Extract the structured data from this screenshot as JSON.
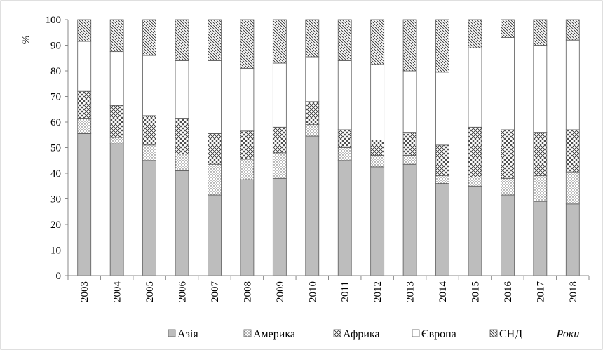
{
  "chart_data": {
    "type": "bar",
    "stacked": true,
    "ylabel": "%",
    "xlabel": "Роки",
    "ylim": [
      0,
      100
    ],
    "yticks": [
      0,
      10,
      20,
      30,
      40,
      50,
      60,
      70,
      80,
      90,
      100
    ],
    "grid": false,
    "legend_position": "bottom",
    "categories": [
      "2003",
      "2004",
      "2005",
      "2006",
      "2007",
      "2008",
      "2009",
      "2010",
      "2011",
      "2012",
      "2013",
      "2014",
      "2015",
      "2016",
      "2017",
      "2018"
    ],
    "series": [
      {
        "name": "Азія",
        "pattern": "solid-gray",
        "color": "#bdbdbd",
        "values": [
          55.5,
          51.5,
          45,
          41,
          31.5,
          37.5,
          38,
          54.5,
          45,
          42.5,
          43.5,
          36,
          35,
          31.5,
          29,
          28
        ]
      },
      {
        "name": "Америка",
        "pattern": "dots",
        "color": "#ffffff",
        "values": [
          6,
          2.5,
          6,
          6.5,
          12,
          8,
          10,
          4.5,
          5,
          4.5,
          3.5,
          3,
          3.5,
          6.5,
          10,
          12.5
        ]
      },
      {
        "name": "Африка",
        "pattern": "crosshatch",
        "color": "#ffffff",
        "values": [
          10.5,
          12.5,
          11.5,
          14,
          12,
          11,
          10,
          9,
          7,
          6,
          9,
          12,
          19.5,
          19,
          17,
          16.5
        ]
      },
      {
        "name": "Європа",
        "pattern": "blank",
        "color": "#ffffff",
        "values": [
          19.5,
          21,
          23.5,
          22.5,
          28.5,
          24.5,
          25,
          17.5,
          27,
          29.5,
          24,
          28.5,
          31,
          36,
          34,
          35
        ]
      },
      {
        "name": "СНД",
        "pattern": "diagonal",
        "color": "#ffffff",
        "values": [
          8.5,
          12.5,
          14,
          16,
          16,
          19,
          17,
          14.5,
          16,
          17.5,
          20,
          20.5,
          11,
          7,
          10,
          8
        ]
      }
    ]
  }
}
